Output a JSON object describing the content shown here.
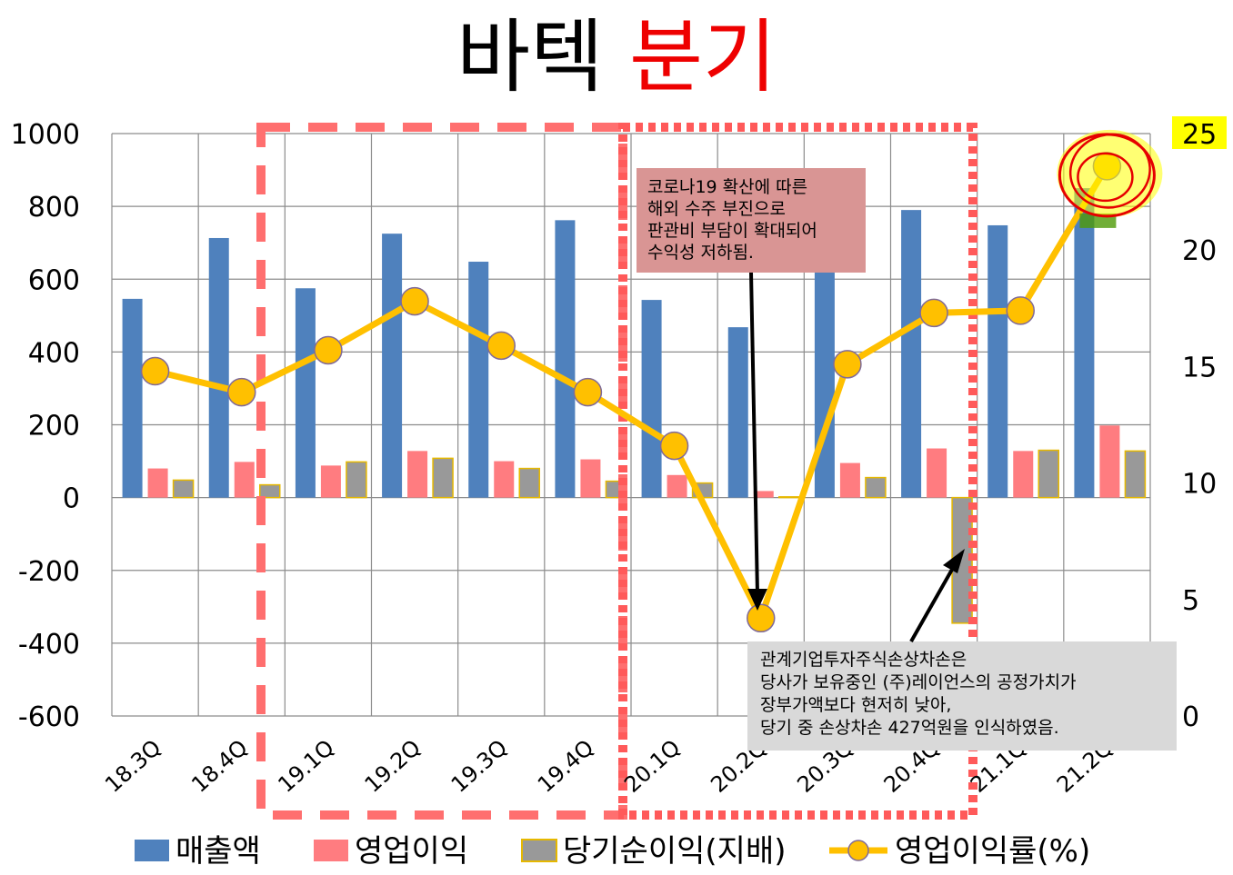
{
  "title": {
    "part1": "바텍",
    "part2": "분기"
  },
  "chart_data": {
    "type": "bar",
    "categories": [
      "18.3Q",
      "18.4Q",
      "19.1Q",
      "19.2Q",
      "19.3Q",
      "19.4Q",
      "20.1Q",
      "20.2Q",
      "20.3Q",
      "20.4Q",
      "21.1Q",
      "21.2Q"
    ],
    "series": [
      {
        "name": "매출액",
        "axis": "left",
        "type": "bar",
        "color": "#4f81bd",
        "values": [
          546,
          713,
          575,
          725,
          648,
          762,
          543,
          468,
          635,
          790,
          748,
          850
        ]
      },
      {
        "name": "영업이익",
        "axis": "left",
        "type": "bar",
        "color": "#ff7c80",
        "values": [
          80,
          98,
          88,
          128,
          100,
          105,
          62,
          18,
          95,
          135,
          128,
          198
        ]
      },
      {
        "name": "당기순이익(지배)",
        "axis": "left",
        "type": "bar",
        "color": "#999999",
        "border": "#e6b800",
        "values": [
          48,
          35,
          98,
          108,
          80,
          45,
          40,
          2,
          55,
          -345,
          130,
          128
        ]
      },
      {
        "name": "영업이익률(%)",
        "axis": "right",
        "type": "line",
        "color": "#ffc000",
        "values": [
          14.8,
          13.9,
          15.7,
          17.8,
          15.9,
          13.9,
          11.6,
          4.2,
          15.1,
          17.3,
          17.4,
          23.6
        ]
      }
    ],
    "y_left": {
      "min": -600,
      "max": 1000,
      "ticks": [
        -600,
        -400,
        -200,
        0,
        200,
        400,
        600,
        800,
        1000
      ]
    },
    "y_right": {
      "min": 0,
      "max": 25,
      "ticks": [
        0,
        5,
        10,
        15,
        20,
        25
      ]
    },
    "grid": true,
    "legend_position": "bottom",
    "annotations": [
      {
        "id": "covid",
        "lines": [
          "코로나19 확산에 따른",
          "해외 수주 부진으로",
          "판관비 부담이 확대되어",
          "수익성 저하됨."
        ],
        "bg": "#d99594"
      },
      {
        "id": "impair",
        "lines": [
          "관계기업투자주식손상차손은",
          "당사가 보유중인 (주)레이언스의 공정가치가",
          "장부가액보다 현저히 낮아,",
          "당기 중 손상차손 427억원을 인식하였음."
        ],
        "bg": "#d9d9d9"
      }
    ]
  }
}
